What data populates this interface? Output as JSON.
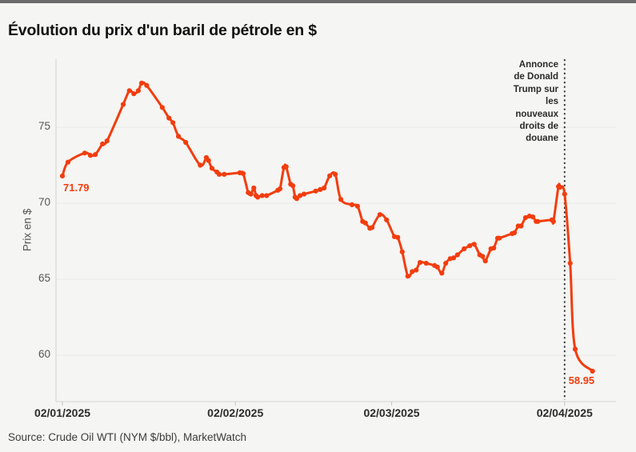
{
  "title": "Évolution du prix d'un baril de pétrole en $",
  "source": "Source: Crude Oil WTI (NYM $/bbl), MarketWatch",
  "colors": {
    "line": "#f23d0e",
    "point_label": "#f23d0e",
    "background": "#f5f5f3",
    "topbar": "#6b6b6b",
    "grid": "#e8e8e5",
    "axis": "#d2d2cf",
    "tick": "#c4c4c1",
    "event_line": "#2a2a2a"
  },
  "chart_data": {
    "type": "line",
    "title": "Évolution du prix d'un baril de pétrole en $",
    "xlabel": "",
    "ylabel": "Prix en $",
    "x_unit": "days since 02/01/2025",
    "xticks": {
      "days": [
        0,
        31,
        59,
        90
      ],
      "labels": [
        "02/01/2025",
        "02/02/2025",
        "02/03/2025",
        "02/04/2025"
      ]
    },
    "yticks": [
      60,
      65,
      70,
      75
    ],
    "ylim": [
      57,
      79.5
    ],
    "grid": "horizontal",
    "legend": "none",
    "event_line": {
      "day": 90,
      "style": "dotted-vertical"
    },
    "annotation_lines": [
      "Annonce",
      "de Donald",
      "Trump sur",
      "les",
      "nouveaux",
      "droits de",
      "douane"
    ],
    "first_point_label": "71.79",
    "last_point_label": "58.95",
    "series": [
      {
        "name": "Crude Oil WTI",
        "color": "#f23d0e",
        "points": [
          [
            0,
            71.79
          ],
          [
            1,
            72.7
          ],
          [
            4,
            73.3
          ],
          [
            5,
            73.15
          ],
          [
            5.9,
            73.2
          ],
          [
            7.2,
            73.9
          ],
          [
            8,
            74.1
          ],
          [
            10.9,
            76.5
          ],
          [
            12,
            77.4
          ],
          [
            12.8,
            77.2
          ],
          [
            13.6,
            77.4
          ],
          [
            14.2,
            77.9
          ],
          [
            15.1,
            77.75
          ],
          [
            17.9,
            76.3
          ],
          [
            19.1,
            75.6
          ],
          [
            19.8,
            75.3
          ],
          [
            20.8,
            74.4
          ],
          [
            22.1,
            74.0
          ],
          [
            24.7,
            72.5
          ],
          [
            25.8,
            73.0
          ],
          [
            26.2,
            72.8
          ],
          [
            26.8,
            72.3
          ],
          [
            27.7,
            72.05
          ],
          [
            28.1,
            71.9
          ],
          [
            29,
            71.9
          ],
          [
            31.8,
            72.0
          ],
          [
            32.4,
            71.95
          ],
          [
            33.3,
            70.7
          ],
          [
            33.8,
            70.6
          ],
          [
            34.3,
            71.0
          ],
          [
            34.7,
            70.5
          ],
          [
            35,
            70.4
          ],
          [
            35.8,
            70.5
          ],
          [
            36.6,
            70.5
          ],
          [
            38.6,
            70.85
          ],
          [
            39,
            70.95
          ],
          [
            39.7,
            72.35
          ],
          [
            40.1,
            72.4
          ],
          [
            40.9,
            71.25
          ],
          [
            41.3,
            71.15
          ],
          [
            41.7,
            70.4
          ],
          [
            42,
            70.3
          ],
          [
            42.6,
            70.5
          ],
          [
            43.3,
            70.6
          ],
          [
            45.4,
            70.8
          ],
          [
            46.2,
            70.9
          ],
          [
            46.9,
            71.0
          ],
          [
            47.9,
            71.8
          ],
          [
            48.9,
            71.9
          ],
          [
            49.9,
            70.25
          ],
          [
            51.9,
            69.9
          ],
          [
            52.9,
            69.8
          ],
          [
            53.8,
            68.8
          ],
          [
            54.3,
            68.7
          ],
          [
            55.1,
            68.35
          ],
          [
            55.5,
            68.4
          ],
          [
            56.9,
            69.25
          ],
          [
            58.1,
            68.9
          ],
          [
            59.5,
            67.8
          ],
          [
            60.1,
            67.75
          ],
          [
            60.9,
            66.8
          ],
          [
            61.9,
            65.2
          ],
          [
            62.7,
            65.5
          ],
          [
            63.4,
            65.6
          ],
          [
            64.1,
            66.1
          ],
          [
            65.2,
            66.05
          ],
          [
            66.7,
            65.9
          ],
          [
            67.2,
            65.8
          ],
          [
            68,
            65.4
          ],
          [
            68.7,
            66.05
          ],
          [
            69.5,
            66.35
          ],
          [
            70.1,
            66.4
          ],
          [
            70.8,
            66.6
          ],
          [
            72,
            67.0
          ],
          [
            73,
            67.2
          ],
          [
            73.8,
            67.3
          ],
          [
            74.8,
            66.6
          ],
          [
            75.3,
            66.5
          ],
          [
            75.8,
            66.2
          ],
          [
            76.8,
            67.0
          ],
          [
            77.3,
            67.05
          ],
          [
            78,
            67.7
          ],
          [
            78.3,
            67.7
          ],
          [
            80.6,
            68.0
          ],
          [
            81,
            68.05
          ],
          [
            81.7,
            68.5
          ],
          [
            82.2,
            68.5
          ],
          [
            83,
            69.05
          ],
          [
            83.7,
            69.15
          ],
          [
            84.3,
            69.1
          ],
          [
            84.9,
            68.8
          ],
          [
            85.2,
            68.8
          ],
          [
            87.7,
            68.9
          ],
          [
            88,
            68.8
          ],
          [
            88.9,
            71.1
          ],
          [
            89.2,
            71.05
          ],
          [
            90,
            70.6
          ],
          [
            91,
            66.05
          ],
          [
            91.9,
            60.4
          ],
          [
            95,
            58.95
          ]
        ]
      }
    ]
  }
}
